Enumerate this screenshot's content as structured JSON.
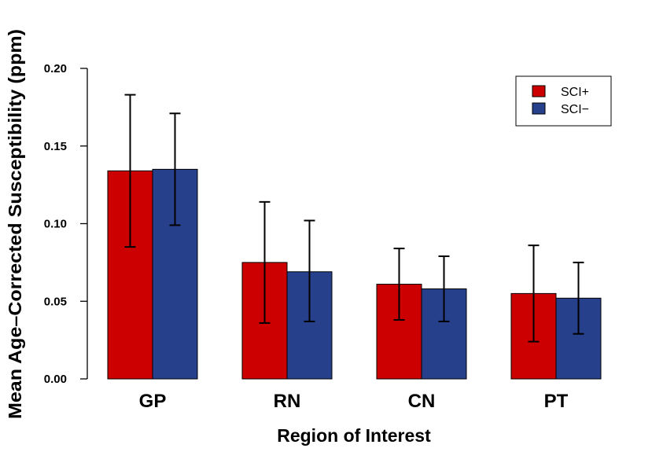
{
  "chart_data": {
    "type": "bar",
    "title": "",
    "xlabel": "Region of Interest",
    "ylabel": "Mean Age–Corrected Susceptibility (ppm)",
    "categories": [
      "GP",
      "RN",
      "CN",
      "PT"
    ],
    "ylim": [
      0,
      0.2
    ],
    "yticks": [
      "0.00",
      "0.05",
      "0.10",
      "0.15",
      "0.20"
    ],
    "grid": false,
    "legend_position": "top-right",
    "series": [
      {
        "name": "SCI+",
        "color": "#cc0000",
        "values": [
          0.134,
          0.075,
          0.061,
          0.055
        ],
        "error_low": [
          0.085,
          0.036,
          0.038,
          0.024
        ],
        "error_high": [
          0.183,
          0.114,
          0.084,
          0.086
        ]
      },
      {
        "name": "SCI−",
        "color": "#27408b",
        "values": [
          0.135,
          0.069,
          0.058,
          0.052
        ],
        "error_low": [
          0.099,
          0.037,
          0.037,
          0.029
        ],
        "error_high": [
          0.171,
          0.102,
          0.079,
          0.075
        ]
      }
    ]
  }
}
